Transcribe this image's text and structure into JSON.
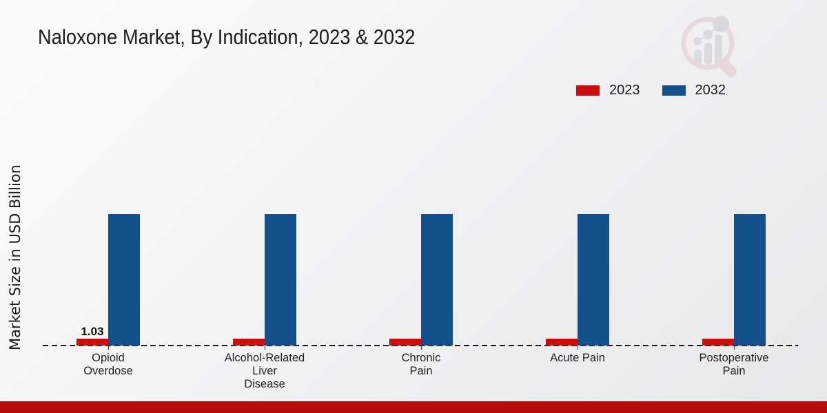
{
  "header": {
    "title": "Naloxone Market, By Indication, 2023 & 2032"
  },
  "branding": {
    "logo": "magnifier-bar-chart-watermark"
  },
  "legend": {
    "items": [
      {
        "label": "2023",
        "color": "#c90e0e"
      },
      {
        "label": "2032",
        "color": "#14518c"
      }
    ]
  },
  "axes": {
    "y_label": "Market Size in USD Billion"
  },
  "footer": {
    "bar_color": "#b80c0c"
  },
  "chart_data": {
    "type": "bar",
    "title": "Naloxone Market, By Indication, 2023 & 2032",
    "ylabel": "Market Size in USD Billion",
    "xlabel": "",
    "categories": [
      "Opioid Overdose",
      "Alcohol-Related Liver Disease",
      "Chronic Pain",
      "Acute Pain",
      "Postoperative Pain"
    ],
    "category_tick_lines": [
      [
        "Opioid",
        "Overdose"
      ],
      [
        "Alcohol-Related",
        "Liver",
        "Disease"
      ],
      [
        "Chronic",
        "Pain"
      ],
      [
        "Acute Pain"
      ],
      [
        "Postoperative",
        "Pain"
      ]
    ],
    "series": [
      {
        "name": "2023",
        "color": "#c90e0e",
        "values": [
          1.03,
          1.0,
          1.0,
          1.0,
          1.0
        ]
      },
      {
        "name": "2032",
        "color": "#14518c",
        "values": [
          19.7,
          19.7,
          19.7,
          19.7,
          19.7
        ]
      }
    ],
    "value_labels": [
      {
        "series": "2023",
        "category_index": 0,
        "text": "1.03"
      }
    ],
    "legend_position": "top-right",
    "baseline_style": "dashed",
    "grid": false,
    "y_tick_labels_visible": false
  }
}
